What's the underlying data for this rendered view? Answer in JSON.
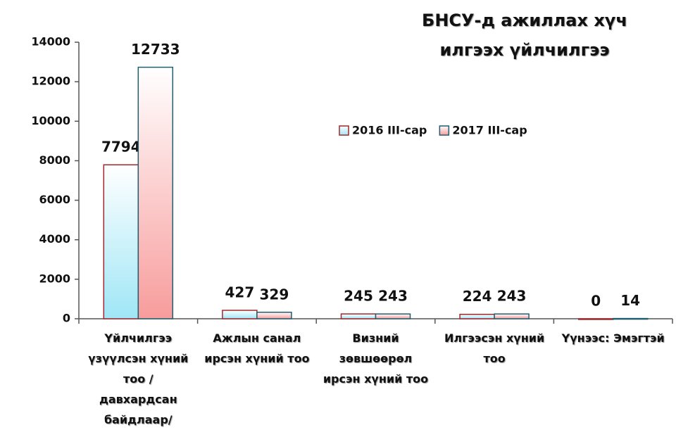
{
  "chart_data": {
    "type": "bar",
    "title": "БНСУ-д ажиллах хүч илгээх үйлчилгээ",
    "categories": [
      "Үйлчилгээ үзүүлсэн хүний тоо /давхардсан байдлаар/",
      "Ажлын санал ирсэн хүний тоо",
      "Визний зөвшөөрөл ирсэн хүний тоо",
      "Илгээсэн хүний тоо",
      "Үүнээс: Эмэгтэй"
    ],
    "series": [
      {
        "name": "2016 III-сар",
        "color": "#9fe6f6",
        "edgecolor": "#a0282c",
        "values": [
          7794,
          427,
          245,
          224,
          0
        ]
      },
      {
        "name": "2017 III-сар",
        "color": "#f89c9c",
        "edgecolor": "#1f5f6e",
        "values": [
          12733,
          329,
          243,
          243,
          14
        ]
      }
    ],
    "ylim": [
      0,
      14000
    ],
    "yticks": [
      0,
      2000,
      4000,
      6000,
      8000,
      10000,
      12000,
      14000
    ],
    "grid": false,
    "legend": "center"
  }
}
